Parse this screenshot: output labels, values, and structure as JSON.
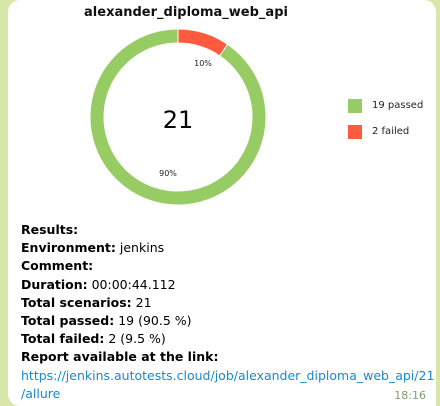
{
  "chart_data": {
    "type": "pie",
    "title": "alexander_diploma_web_api",
    "center_label": "21",
    "slices": [
      {
        "label": "19 passed",
        "value": 19,
        "percent_label": "90%",
        "color": "#97cc64"
      },
      {
        "label": "2 failed",
        "value": 2,
        "percent_label": "10%",
        "color": "#fd5a3e"
      }
    ],
    "legend_position": "right"
  },
  "results": {
    "heading": "Results:",
    "environment_label": "Environment:",
    "environment_value": "jenkins",
    "comment_label": "Comment:",
    "duration_label": "Duration:",
    "duration_value": "00:00:44.112",
    "total_scenarios_label": "Total scenarios:",
    "total_scenarios_value": "21",
    "total_passed_label": "Total passed:",
    "total_passed_value": "19 (90.5 %)",
    "total_failed_label": "Total failed:",
    "total_failed_value": "2 (9.5 %)",
    "report_label": "Report available at the link:",
    "report_link_line1": "https://jenkins.autotests.cloud/job/alexander_diploma_web_api/21",
    "report_link_line2": "/allure"
  },
  "message": {
    "time": "18:16"
  }
}
